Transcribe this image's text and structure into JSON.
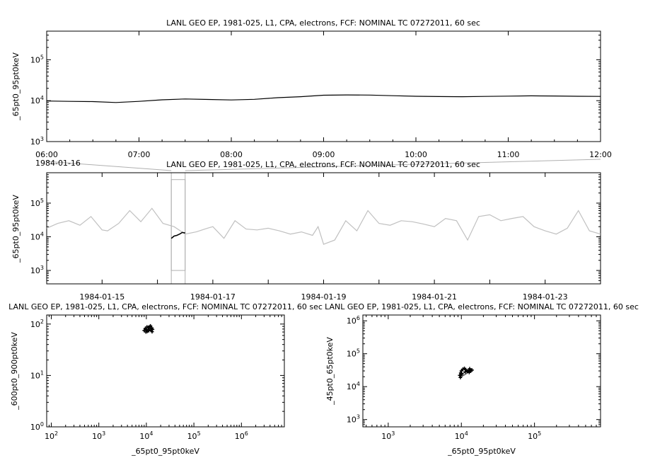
{
  "chart_data": [
    {
      "type": "line",
      "title": "LANL GEO EP, 1981-025, L1, CPA, electrons, FCF: NOMINAL TC 07272011, 60 sec",
      "ylabel": "_65pt0_95pt0keV",
      "yscale": "log",
      "ylim": [
        1000,
        500000
      ],
      "y_tick_labels": [
        {
          "base": "10",
          "exp": "3"
        },
        {
          "base": "10",
          "exp": "4"
        },
        {
          "base": "10",
          "exp": "5"
        }
      ],
      "x_tick_labels": [
        "06:00",
        "07:00",
        "08:00",
        "09:00",
        "10:00",
        "11:00",
        "12:00"
      ],
      "xlim_hours": [
        6,
        12
      ],
      "series": [
        {
          "color": "#000000",
          "x": [
            6.0,
            6.25,
            6.5,
            6.75,
            7.0,
            7.25,
            7.5,
            7.75,
            8.0,
            8.25,
            8.5,
            8.75,
            9.0,
            9.25,
            9.5,
            9.75,
            10.0,
            10.25,
            10.5,
            10.75,
            11.0,
            11.25,
            11.5,
            11.75,
            12.0
          ],
          "y": [
            9800,
            9600,
            9500,
            9000,
            9600,
            10500,
            11000,
            10700,
            10400,
            10800,
            11800,
            12500,
            13600,
            13800,
            13700,
            13200,
            12800,
            12600,
            12500,
            12700,
            12900,
            13100,
            13000,
            12800,
            12700
          ]
        }
      ]
    },
    {
      "type": "line",
      "title": "LANL GEO EP, 1981-025, L1, CPA, electrons, FCF: NOMINAL TC 07272011, 60 sec",
      "ylabel": "_65pt0_95pt0keV",
      "yscale": "log",
      "ylim": [
        400,
        800000
      ],
      "y_tick_labels": [
        {
          "base": "10",
          "exp": "3"
        },
        {
          "base": "10",
          "exp": "4"
        },
        {
          "base": "10",
          "exp": "5"
        }
      ],
      "x_tick_labels": [
        "1984-01-15",
        "1984-01-17",
        "1984-01-19",
        "1984-01-21",
        "1984-01-23"
      ],
      "x_tick_days": [
        15,
        17,
        19,
        21,
        23
      ],
      "xlim_days": [
        14,
        24
      ],
      "zoom_label": "1984-01-16",
      "zoom_window_days": [
        16.25,
        16.5
      ],
      "series": [
        {
          "color": "#c0c0c0",
          "x": [
            14.0,
            14.2,
            14.4,
            14.6,
            14.8,
            15.0,
            15.1,
            15.3,
            15.5,
            15.7,
            15.9,
            16.1,
            16.3,
            16.5,
            16.7,
            16.9,
            17.0,
            17.2,
            17.4,
            17.6,
            17.8,
            18.0,
            18.2,
            18.4,
            18.6,
            18.8,
            18.9,
            19.0,
            19.2,
            19.4,
            19.6,
            19.8,
            20.0,
            20.2,
            20.4,
            20.6,
            20.8,
            21.0,
            21.2,
            21.4,
            21.6,
            21.8,
            22.0,
            22.2,
            22.4,
            22.6,
            22.8,
            23.0,
            23.2,
            23.4,
            23.6,
            23.8,
            24.0
          ],
          "y": [
            18000,
            25000,
            30000,
            22000,
            40000,
            16000,
            15000,
            25000,
            60000,
            28000,
            70000,
            25000,
            20000,
            12000,
            14000,
            18000,
            20000,
            9000,
            30000,
            17000,
            16000,
            18000,
            15000,
            12000,
            14000,
            11000,
            20000,
            6000,
            8000,
            30000,
            15000,
            60000,
            25000,
            22000,
            30000,
            28000,
            24000,
            20000,
            35000,
            30000,
            8000,
            40000,
            45000,
            30000,
            35000,
            40000,
            20000,
            15000,
            12000,
            18000,
            60000,
            15000,
            12000
          ]
        },
        {
          "color": "#000000",
          "x": [
            16.25,
            16.3,
            16.35,
            16.4,
            16.45,
            16.5
          ],
          "y": [
            9000,
            10500,
            11000,
            12000,
            13500,
            13000
          ]
        }
      ]
    },
    {
      "type": "scatter",
      "title": "LANL GEO EP, 1981-025, L1, CPA, electrons, FCF: NOMINAL TC 07272011, 60 sec",
      "xlabel": "_65pt0_95pt0keV",
      "ylabel": "_600pt0_900pt0keV",
      "xscale": "log",
      "yscale": "log",
      "xlim": [
        80,
        8000000
      ],
      "ylim": [
        1,
        150
      ],
      "x_tick_labels": [
        {
          "base": "10",
          "exp": "2"
        },
        {
          "base": "10",
          "exp": "3"
        },
        {
          "base": "10",
          "exp": "4"
        },
        {
          "base": "10",
          "exp": "5"
        },
        {
          "base": "10",
          "exp": "6"
        }
      ],
      "y_tick_labels": [
        {
          "base": "10",
          "exp": "0"
        },
        {
          "base": "10",
          "exp": "1"
        },
        {
          "base": "10",
          "exp": "2"
        }
      ],
      "points": [
        [
          9000,
          75
        ],
        [
          9500,
          82
        ],
        [
          10000,
          78
        ],
        [
          10500,
          72
        ],
        [
          11000,
          86
        ],
        [
          11500,
          80
        ],
        [
          12000,
          90
        ],
        [
          12500,
          76
        ],
        [
          13000,
          84
        ],
        [
          13500,
          79
        ],
        [
          9800,
          70
        ],
        [
          12200,
          92
        ],
        [
          11200,
          74
        ],
        [
          10300,
          88
        ],
        [
          13200,
          71
        ]
      ]
    },
    {
      "type": "scatter",
      "title": "LANL GEO EP, 1981-025, L1, CPA, electrons, FCF: NOMINAL TC 07272011, 60 sec",
      "xlabel": "_65pt0_95pt0keV",
      "ylabel": "_45pt0_65pt0keV",
      "xscale": "log",
      "yscale": "log",
      "xlim": [
        450,
        800000
      ],
      "ylim": [
        600,
        1500000
      ],
      "x_tick_labels": [
        {
          "base": "10",
          "exp": "3"
        },
        {
          "base": "10",
          "exp": "4"
        },
        {
          "base": "10",
          "exp": "5"
        }
      ],
      "y_tick_labels": [
        {
          "base": "10",
          "exp": "3"
        },
        {
          "base": "10",
          "exp": "4"
        },
        {
          "base": "10",
          "exp": "5"
        },
        {
          "base": "10",
          "exp": "6"
        }
      ],
      "points": [
        [
          9500,
          22000
        ],
        [
          9800,
          26000
        ],
        [
          10000,
          30000
        ],
        [
          10500,
          34000
        ],
        [
          11000,
          36000
        ],
        [
          11500,
          33000
        ],
        [
          12000,
          29000
        ],
        [
          12500,
          31000
        ],
        [
          13000,
          35000
        ],
        [
          13500,
          30000
        ],
        [
          9700,
          19000
        ],
        [
          10200,
          24000
        ],
        [
          11300,
          28000
        ],
        [
          12800,
          27000
        ],
        [
          14000,
          32000
        ]
      ]
    }
  ]
}
